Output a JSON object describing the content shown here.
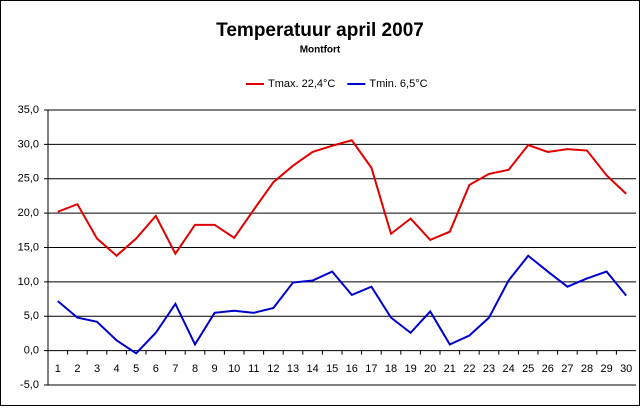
{
  "chart_data": {
    "type": "line",
    "title": "Temperatuur april 2007",
    "subtitle": "Montfort",
    "categories": [
      "1",
      "2",
      "3",
      "4",
      "5",
      "6",
      "7",
      "8",
      "9",
      "10",
      "11",
      "12",
      "13",
      "14",
      "15",
      "16",
      "17",
      "18",
      "19",
      "20",
      "21",
      "22",
      "23",
      "24",
      "25",
      "26",
      "27",
      "28",
      "29",
      "30"
    ],
    "series": [
      {
        "name": "Tmax. 22,4°C",
        "color": "#e00000",
        "values": [
          20.2,
          21.3,
          16.3,
          13.8,
          16.3,
          19.6,
          14.1,
          18.3,
          18.3,
          16.4,
          20.5,
          24.5,
          26.9,
          28.9,
          29.8,
          30.6,
          26.6,
          17.0,
          19.2,
          16.1,
          17.3,
          24.1,
          25.7,
          26.3,
          29.9,
          28.9,
          29.3,
          29.1,
          25.5,
          22.8
        ]
      },
      {
        "name": "Tmin. 6,5°C",
        "color": "#0000cc",
        "values": [
          7.2,
          4.8,
          4.2,
          1.5,
          -0.4,
          2.6,
          6.8,
          0.9,
          5.5,
          5.8,
          5.5,
          6.2,
          9.9,
          10.2,
          11.5,
          8.1,
          9.3,
          4.8,
          2.6,
          5.7,
          0.9,
          2.2,
          4.8,
          10.2,
          13.8,
          11.5,
          9.3,
          10.5,
          11.5,
          8.0
        ]
      }
    ],
    "ylim": [
      -5,
      35
    ],
    "yticks": [
      {
        "value": -5,
        "label": "-5,0"
      },
      {
        "value": 0,
        "label": "0,0"
      },
      {
        "value": 5,
        "label": "5,0"
      },
      {
        "value": 10,
        "label": "10,0"
      },
      {
        "value": 15,
        "label": "15,0"
      },
      {
        "value": 20,
        "label": "20,0"
      },
      {
        "value": 25,
        "label": "25,0"
      },
      {
        "value": 30,
        "label": "30,0"
      },
      {
        "value": 35,
        "label": "35,0"
      }
    ],
    "grid": true,
    "legend": "top"
  }
}
